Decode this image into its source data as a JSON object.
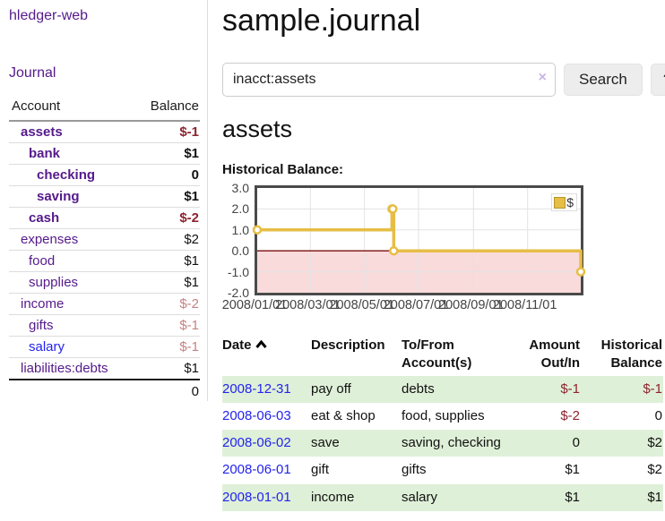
{
  "sidebar": {
    "app_title": "hledger-web",
    "journal_link": "Journal",
    "table": {
      "columns": {
        "account": "Account",
        "balance": "Balance"
      },
      "rows": [
        {
          "name": "assets",
          "depth": 1,
          "balance": "$-1",
          "bold": true
        },
        {
          "name": "bank",
          "depth": 2,
          "balance": "$1",
          "bold": true
        },
        {
          "name": "checking",
          "depth": 3,
          "balance": "0",
          "bold": true
        },
        {
          "name": "saving",
          "depth": 3,
          "balance": "$1",
          "bold": true
        },
        {
          "name": "cash",
          "depth": 2,
          "balance": "$-2",
          "bold": true
        },
        {
          "name": "expenses",
          "depth": 1,
          "balance": "$2",
          "bold": false
        },
        {
          "name": "food",
          "depth": 2,
          "balance": "$1",
          "bold": false
        },
        {
          "name": "supplies",
          "depth": 2,
          "balance": "$1",
          "bold": false
        },
        {
          "name": "income",
          "depth": 1,
          "balance": "$-2",
          "bold": false
        },
        {
          "name": "gifts",
          "depth": 2,
          "balance": "$-1",
          "bold": false
        },
        {
          "name": "salary",
          "depth": 2,
          "balance": "$-1",
          "bold": false,
          "blue": true
        },
        {
          "name": "liabilities:debts",
          "depth": 1,
          "balance": "$1",
          "bold": false
        }
      ],
      "total": "0"
    }
  },
  "main": {
    "title": "sample.journal",
    "search": {
      "value": "inacct:assets",
      "clear_icon": "×",
      "button": "Search",
      "help_button": "?"
    },
    "account_heading": "assets",
    "chart_heading": "Historical Balance:"
  },
  "chart_data": {
    "type": "line",
    "step": true,
    "title": "Historical Balance:",
    "series": [
      {
        "name": "$",
        "color": "#e6be45",
        "points": [
          [
            "2008-01-01",
            1
          ],
          [
            "2008-06-01",
            2
          ],
          [
            "2008-06-02",
            2
          ],
          [
            "2008-06-03",
            0
          ],
          [
            "2008-12-31",
            -1
          ]
        ]
      }
    ],
    "x_domain": [
      "2008-01-01",
      "2008-12-31"
    ],
    "x_ticks": [
      "2008/01/01",
      "2008/03/01",
      "2008/05/01",
      "2008/07/01",
      "2008/09/01",
      "2008/11/01"
    ],
    "y_ticks": [
      3.0,
      2.0,
      1.0,
      0.0,
      -1.0,
      -2.0
    ],
    "ylim": [
      -2,
      3
    ],
    "grid": true,
    "negative_fill": "#f9dbdb",
    "zero_line_color": "#7a0c0c",
    "grid_color": "#e3e3e3",
    "legend": "$",
    "legend_position": "top-right"
  },
  "register": {
    "columns": [
      "Date",
      "Description",
      "To/From Account(s)",
      "Amount Out/In",
      "Historical Balance"
    ],
    "rows": [
      {
        "date": "2008-12-31",
        "description": "pay off",
        "accounts": "debts",
        "amount": "$-1",
        "balance": "$-1"
      },
      {
        "date": "2008-06-03",
        "description": "eat & shop",
        "accounts": "food, supplies",
        "amount": "$-2",
        "balance": "0"
      },
      {
        "date": "2008-06-02",
        "description": "save",
        "accounts": "saving, checking",
        "amount": "0",
        "balance": "$2"
      },
      {
        "date": "2008-06-01",
        "description": "gift",
        "accounts": "gifts",
        "amount": "$1",
        "balance": "$2"
      },
      {
        "date": "2008-01-01",
        "description": "income",
        "accounts": "salary",
        "amount": "$1",
        "balance": "$1"
      }
    ]
  }
}
